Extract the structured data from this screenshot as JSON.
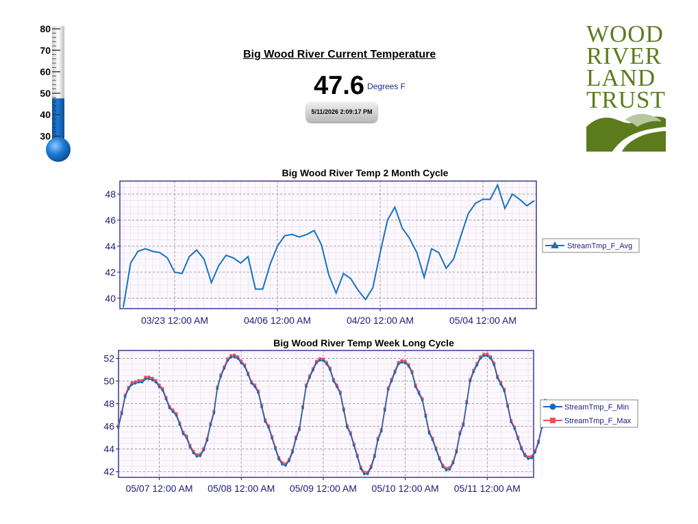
{
  "header": {
    "title": "Big Wood River Current Temperature",
    "current_value": "47.6",
    "unit": "Degrees F",
    "timestamp": "5/11/2026 2:09:17 PM"
  },
  "thermometer": {
    "scale_labels": [
      "80",
      "70",
      "60",
      "50",
      "40",
      "30"
    ],
    "scale_min": 30,
    "scale_max": 80,
    "value": 47.6,
    "fill_color": "#1e7ad3"
  },
  "logo": {
    "lines": [
      "WOOD",
      "RIVER",
      "LAND",
      "TRUST"
    ],
    "color": "#5c7b1d"
  },
  "chart_data": [
    {
      "type": "line",
      "title": "Big Wood River Temp 2 Month Cycle",
      "x_start": "03/16",
      "x_step_days": 1,
      "x_tick_labels": [
        "03/23 12:00 AM",
        "04/06 12:00 AM",
        "04/20 12:00 AM",
        "05/04 12:00 AM"
      ],
      "ylim": [
        39.2,
        49.0
      ],
      "y_ticks": [
        40,
        42,
        44,
        46,
        48
      ],
      "grid": true,
      "legend_position": "right",
      "series": [
        {
          "name": "StreamTmp_F_Avg",
          "color": "#1372c2",
          "marker": "triangle",
          "values": [
            39.3,
            42.7,
            43.6,
            43.8,
            43.6,
            43.5,
            43.1,
            42.0,
            41.9,
            43.2,
            43.7,
            43.0,
            41.2,
            42.5,
            43.3,
            43.1,
            42.7,
            43.2,
            40.7,
            40.7,
            42.6,
            44.0,
            44.8,
            44.9,
            44.7,
            44.9,
            45.2,
            44.1,
            41.8,
            40.4,
            41.9,
            41.5,
            40.6,
            39.9,
            40.8,
            43.5,
            46.0,
            47.0,
            45.4,
            44.6,
            43.5,
            41.6,
            43.8,
            43.5,
            42.3,
            43.0,
            44.8,
            46.5,
            47.3,
            47.6,
            47.6,
            48.7,
            46.9,
            48.0,
            47.6,
            47.1,
            47.5
          ]
        }
      ]
    },
    {
      "type": "line",
      "title": "Big Wood River Temp Week Long Cycle",
      "x_tick_labels": [
        "05/07 12:00 AM",
        "05/08 12:00 AM",
        "05/09 12:00 AM",
        "05/10 12:00 AM",
        "05/11 12:00 AM"
      ],
      "ylim": [
        41.5,
        52.7
      ],
      "y_ticks": [
        42,
        44,
        46,
        48,
        50,
        52
      ],
      "grid": true,
      "legend_position": "right",
      "min_points": [
        [
          -12,
          45.9
        ],
        [
          -11,
          47.1
        ],
        [
          -10,
          48.6
        ],
        [
          -9,
          49.3
        ],
        [
          -8,
          49.7
        ],
        [
          -7,
          49.8
        ],
        [
          -6,
          49.9
        ],
        [
          -5,
          49.9
        ],
        [
          -4,
          50.2
        ],
        [
          -3,
          50.2
        ],
        [
          -2,
          50.1
        ],
        [
          -1,
          49.9
        ],
        [
          0,
          49.5
        ],
        [
          4,
          47.3
        ],
        [
          8,
          45.0
        ],
        [
          9.5,
          43.9
        ],
        [
          10.5,
          43.4
        ],
        [
          11.5,
          43.3
        ],
        [
          12.5,
          43.5
        ],
        [
          13.5,
          44.3
        ],
        [
          15,
          46.1
        ],
        [
          18,
          50.4
        ],
        [
          20,
          51.8
        ],
        [
          21.5,
          52.2
        ],
        [
          23,
          52.0
        ],
        [
          24,
          51.6
        ],
        [
          28,
          49.5
        ],
        [
          32,
          45.9
        ],
        [
          34,
          44.0
        ],
        [
          35.5,
          42.8
        ],
        [
          36.5,
          42.5
        ],
        [
          37.5,
          42.6
        ],
        [
          38.5,
          43.3
        ],
        [
          40,
          44.9
        ],
        [
          44,
          50.3
        ],
        [
          46,
          51.6
        ],
        [
          47.5,
          51.9
        ],
        [
          49,
          51.5
        ],
        [
          52,
          49.5
        ],
        [
          56,
          45.3
        ],
        [
          58,
          43.3
        ],
        [
          59.5,
          41.9
        ],
        [
          60.5,
          41.7
        ],
        [
          61.5,
          41.9
        ],
        [
          62.5,
          42.8
        ],
        [
          64,
          44.8
        ],
        [
          68,
          50.0
        ],
        [
          70,
          51.5
        ],
        [
          71.5,
          51.7
        ],
        [
          73,
          51.3
        ],
        [
          76,
          48.9
        ],
        [
          80,
          44.8
        ],
        [
          82,
          43.1
        ],
        [
          83.5,
          42.2
        ],
        [
          84.5,
          42.1
        ],
        [
          85.5,
          42.3
        ],
        [
          86.5,
          43.2
        ],
        [
          88,
          45.3
        ],
        [
          92,
          50.8
        ],
        [
          94,
          52.0
        ],
        [
          95.5,
          52.3
        ],
        [
          97,
          52.0
        ],
        [
          100,
          49.7
        ],
        [
          104,
          45.8
        ],
        [
          106,
          44.0
        ],
        [
          107.5,
          43.2
        ],
        [
          108.5,
          43.1
        ],
        [
          109.5,
          43.3
        ],
        [
          110.5,
          44.1
        ],
        [
          112,
          45.9
        ],
        [
          113,
          47.4
        ]
      ],
      "max_offset": 0.15,
      "max_extra_end": 48.3,
      "series": [
        {
          "name": "StreamTmp_F_Min",
          "color": "#1468b8",
          "marker": "circle"
        },
        {
          "name": "StreamTmp_F_Max",
          "color": "#ef4e53",
          "marker": "square"
        }
      ]
    }
  ]
}
